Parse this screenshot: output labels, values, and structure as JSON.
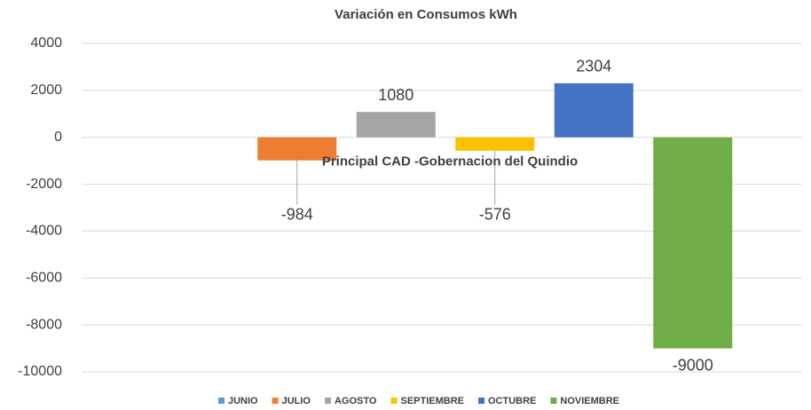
{
  "chart_data": {
    "type": "bar",
    "title": "Variación en Consumos kWh",
    "categories": [
      "Principal CAD -Gobernacion del Quindio"
    ],
    "series": [
      {
        "name": "JUNIO",
        "color": "#5b9bd5",
        "values": [
          null
        ]
      },
      {
        "name": "JULIO",
        "color": "#ed7d31",
        "values": [
          -984
        ]
      },
      {
        "name": "AGOSTO",
        "color": "#a5a5a5",
        "values": [
          1080
        ]
      },
      {
        "name": "SEPTIEMBRE",
        "color": "#ffc000",
        "values": [
          -576
        ]
      },
      {
        "name": "OCTUBRE",
        "color": "#4472c4",
        "values": [
          2304
        ]
      },
      {
        "name": "NOVIEMBRE",
        "color": "#70ad47",
        "values": [
          -9000
        ]
      }
    ],
    "ylim": [
      -10000,
      4000
    ],
    "yticks": [
      4000,
      2000,
      0,
      -2000,
      -4000,
      -6000,
      -8000,
      -10000
    ],
    "grid": true,
    "legend": "bottom"
  }
}
